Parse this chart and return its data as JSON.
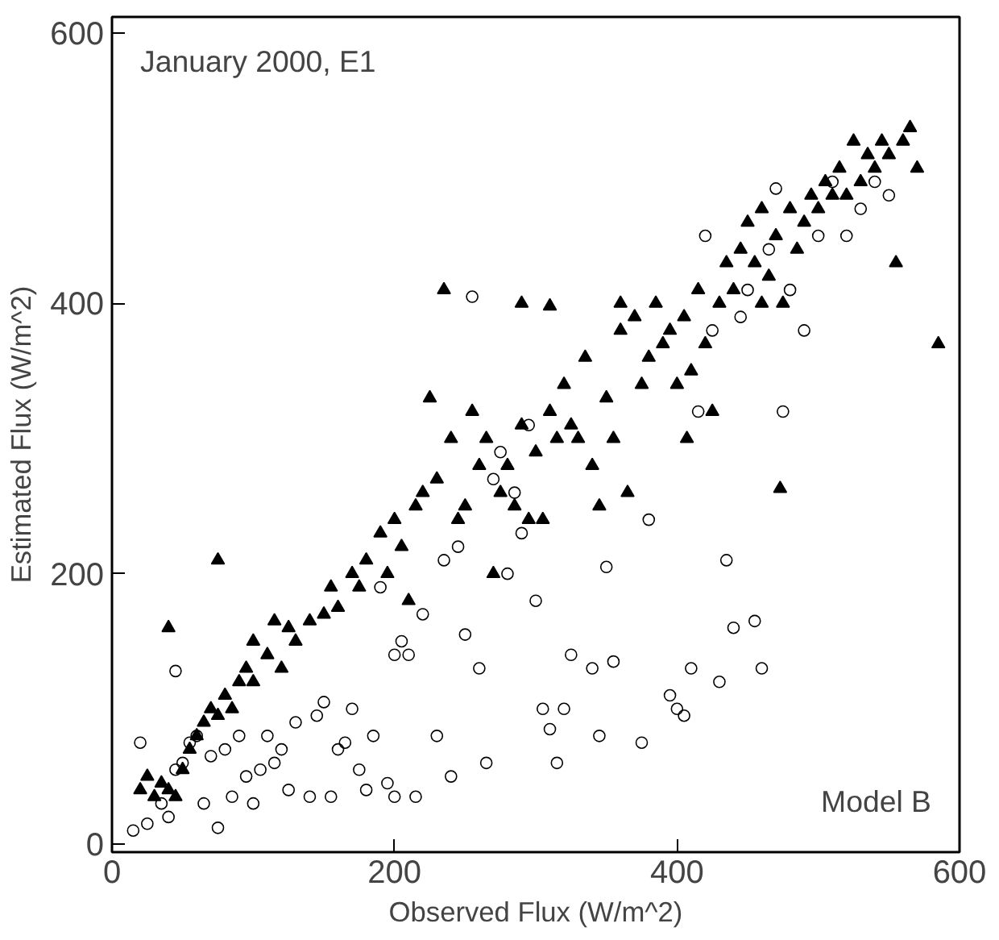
{
  "chart_data": {
    "type": "scatter",
    "xlabel": "Observed Flux (W/m^2)",
    "ylabel": "Estimated Flux (W/m^2)",
    "annotations": [
      "January 2000, E1",
      "Model B"
    ],
    "xlim": [
      0,
      600
    ],
    "ylim": [
      -6,
      612
    ],
    "xticks": [
      0,
      200,
      400,
      600
    ],
    "yticks": [
      0,
      200,
      400,
      600
    ],
    "grid": false,
    "series": [
      {
        "color": "#000000",
        "marker": "triangle",
        "x": [
          20,
          25,
          30,
          35,
          40,
          45,
          40,
          50,
          55,
          60,
          65,
          70,
          75,
          75,
          80,
          85,
          90,
          95,
          100,
          100,
          110,
          115,
          120,
          125,
          130,
          140,
          150,
          155,
          160,
          170,
          175,
          180,
          190,
          195,
          200,
          205,
          210,
          215,
          220,
          225,
          230,
          235,
          240,
          245,
          250,
          255,
          260,
          265,
          270,
          275,
          280,
          285,
          290,
          295,
          300,
          305,
          310,
          315,
          320,
          325,
          330,
          335,
          340,
          345,
          350,
          355,
          360,
          365,
          370,
          375,
          380,
          385,
          390,
          395,
          400,
          405,
          410,
          415,
          420,
          425,
          430,
          435,
          440,
          445,
          450,
          455,
          460,
          465,
          470,
          475,
          480,
          485,
          490,
          495,
          500,
          505,
          510,
          515,
          520,
          525,
          530,
          535,
          540,
          545,
          550,
          555,
          560,
          565,
          570,
          585,
          310,
          290,
          360,
          407,
          473,
          460
        ],
        "values": [
          40,
          50,
          35,
          45,
          40,
          35,
          160,
          55,
          70,
          80,
          90,
          100,
          95,
          210,
          110,
          100,
          120,
          130,
          120,
          150,
          140,
          165,
          130,
          160,
          150,
          165,
          170,
          190,
          175,
          200,
          190,
          210,
          230,
          200,
          240,
          220,
          180,
          250,
          260,
          330,
          270,
          410,
          300,
          240,
          250,
          320,
          280,
          300,
          200,
          260,
          280,
          250,
          310,
          240,
          290,
          240,
          320,
          300,
          340,
          310,
          300,
          360,
          280,
          250,
          330,
          300,
          380,
          260,
          390,
          340,
          360,
          400,
          370,
          380,
          340,
          390,
          350,
          410,
          370,
          320,
          400,
          430,
          410,
          440,
          460,
          430,
          470,
          420,
          450,
          400,
          470,
          440,
          460,
          480,
          470,
          490,
          480,
          500,
          480,
          520,
          490,
          510,
          500,
          520,
          510,
          430,
          520,
          530,
          500,
          370,
          398,
          400,
          400,
          300,
          263,
          400
        ]
      },
      {
        "color": "#000000",
        "marker": "circle",
        "x": [
          15,
          20,
          25,
          35,
          40,
          45,
          45,
          50,
          55,
          60,
          65,
          70,
          75,
          80,
          85,
          90,
          95,
          100,
          105,
          110,
          115,
          120,
          125,
          130,
          140,
          145,
          150,
          155,
          160,
          165,
          170,
          175,
          180,
          185,
          190,
          195,
          200,
          200,
          205,
          210,
          215,
          220,
          230,
          235,
          240,
          245,
          250,
          255,
          260,
          265,
          270,
          275,
          280,
          285,
          290,
          295,
          300,
          305,
          310,
          315,
          320,
          325,
          340,
          345,
          350,
          355,
          375,
          380,
          395,
          400,
          405,
          410,
          415,
          420,
          425,
          430,
          435,
          440,
          445,
          450,
          455,
          460,
          465,
          470,
          475,
          480,
          490,
          500,
          510,
          520,
          530,
          540,
          550
        ],
        "values": [
          10,
          75,
          15,
          30,
          20,
          55,
          128,
          60,
          75,
          80,
          30,
          65,
          12,
          70,
          35,
          80,
          50,
          30,
          55,
          80,
          60,
          70,
          40,
          90,
          35,
          95,
          105,
          35,
          70,
          75,
          100,
          55,
          40,
          80,
          190,
          45,
          35,
          140,
          150,
          140,
          35,
          170,
          80,
          210,
          50,
          220,
          155,
          405,
          130,
          60,
          270,
          290,
          200,
          260,
          230,
          310,
          180,
          100,
          85,
          60,
          100,
          140,
          130,
          80,
          205,
          135,
          75,
          240,
          110,
          100,
          95,
          130,
          320,
          450,
          380,
          120,
          210,
          160,
          390,
          410,
          165,
          130,
          440,
          485,
          320,
          410,
          380,
          450,
          490,
          450,
          470,
          490,
          480
        ]
      }
    ]
  }
}
